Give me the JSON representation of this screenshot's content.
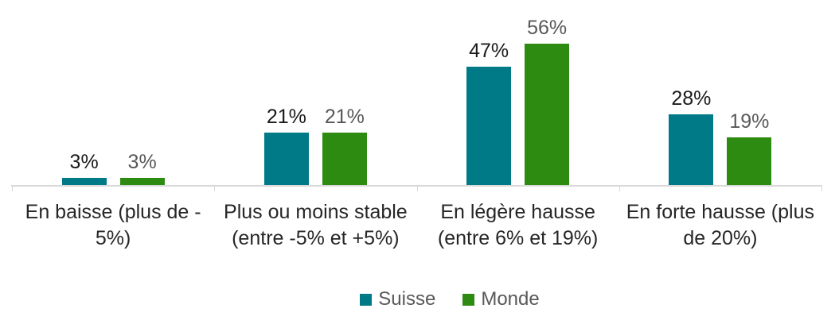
{
  "chart_data": {
    "type": "bar",
    "title": "",
    "xlabel": "",
    "ylabel": "",
    "grid": false,
    "y_axis_visible": false,
    "ylim": [
      0,
      60
    ],
    "legend_position": "bottom",
    "value_suffix": "%",
    "axis_line_color": "#D9D9D9",
    "category_label_color": "#262626",
    "categories": [
      "En baisse (plus de -5%)",
      "Plus ou moins stable (entre -5% et +5%)",
      "En légère hausse (entre 6% et 19%)",
      "En forte hausse (plus de 20%)"
    ],
    "category_label_lines": [
      [
        "En baisse (plus de -",
        "5%)"
      ],
      [
        "Plus ou moins stable",
        "(entre -5% et +5%)"
      ],
      [
        "En légère hausse",
        "(entre 6% et 19%)"
      ],
      [
        "En forte hausse (plus",
        "de 20%)"
      ]
    ],
    "series": [
      {
        "name": "Suisse",
        "values": [
          3,
          21,
          47,
          28
        ],
        "labels": [
          "3%",
          "21%",
          "47%",
          "28%"
        ],
        "color": "#007A87",
        "label_color": "#1A1A1A"
      },
      {
        "name": "Monde",
        "values": [
          3,
          21,
          56,
          19
        ],
        "labels": [
          "3%",
          "21%",
          "56%",
          "19%"
        ],
        "color": "#2E8B11",
        "label_color": "#595959"
      }
    ]
  }
}
